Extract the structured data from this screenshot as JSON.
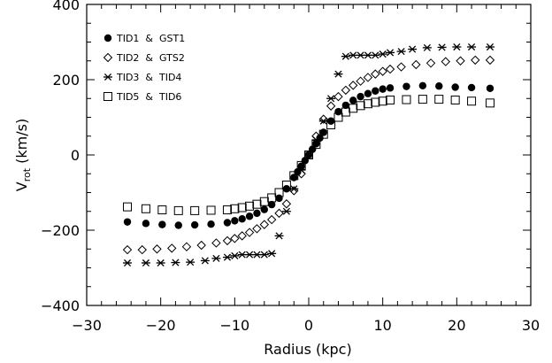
{
  "chart_data": {
    "type": "scatter",
    "xlabel": "Radius (kpc)",
    "ylabel": {
      "main": "V",
      "sub": "rot",
      "rest": " (km/s)"
    },
    "xlim": [
      -30,
      30
    ],
    "ylim": [
      -400,
      400
    ],
    "xticks": [
      -30,
      -20,
      -10,
      0,
      10,
      20,
      30
    ],
    "yticks": [
      -400,
      -200,
      0,
      200,
      400
    ],
    "xtick_labels": [
      "−30",
      "−20",
      "−10",
      "0",
      "10",
      "20",
      "30"
    ],
    "ytick_labels": [
      "−400",
      "−200",
      "0",
      "200",
      "400"
    ],
    "grid": false,
    "legend_position": "top-left",
    "series": [
      {
        "name": "TID1  &  GST1",
        "marker": "filled-circle",
        "x": [
          -24.5,
          -22,
          -19.8,
          -17.6,
          -15.4,
          -13.2,
          -11,
          -10,
          -9,
          -8,
          -7,
          -6,
          -5,
          -4,
          -3,
          -2,
          -1.5,
          -1,
          -0.5,
          0,
          0.5,
          1,
          1.5,
          2,
          3,
          4,
          5,
          6,
          7,
          8,
          9,
          10,
          11,
          13.2,
          15.4,
          17.6,
          19.8,
          22,
          24.5
        ],
        "y": [
          -178,
          -182,
          -185,
          -187,
          -186,
          -184,
          -180,
          -175,
          -170,
          -163,
          -155,
          -145,
          -132,
          -115,
          -90,
          -60,
          -45,
          -30,
          -15,
          0,
          15,
          30,
          45,
          60,
          90,
          115,
          132,
          145,
          155,
          163,
          170,
          175,
          178,
          182,
          184,
          183,
          180,
          179,
          177
        ]
      },
      {
        "name": "TID2  &  GTS2",
        "marker": "open-diamond",
        "x": [
          -24.5,
          -22.5,
          -20.5,
          -18.5,
          -16.5,
          -14.5,
          -12.5,
          -11,
          -10,
          -9,
          -8,
          -7,
          -6,
          -5,
          -4,
          -3,
          -2,
          -1,
          0,
          1,
          2,
          3,
          4,
          5,
          6,
          7,
          8,
          9,
          10,
          11,
          12.5,
          14.5,
          16.5,
          18.5,
          20.5,
          22.5,
          24.5
        ],
        "y": [
          -252,
          -252,
          -250,
          -248,
          -244,
          -240,
          -234,
          -228,
          -222,
          -215,
          -206,
          -196,
          -185,
          -172,
          -155,
          -130,
          -95,
          -50,
          0,
          50,
          95,
          130,
          155,
          172,
          185,
          196,
          206,
          215,
          222,
          228,
          234,
          240,
          244,
          248,
          250,
          252,
          252
        ]
      },
      {
        "name": "TID3  &  TID4",
        "marker": "asterisk",
        "x": [
          -24.5,
          -22,
          -20,
          -18,
          -16,
          -14,
          -12.5,
          -11,
          -10,
          -9,
          -8,
          -7,
          -6,
          -5,
          -4,
          -3,
          -2,
          -1,
          0,
          1,
          2,
          3,
          4,
          5,
          6,
          7,
          8,
          9,
          10,
          11,
          12.5,
          14,
          16,
          18,
          20,
          22,
          24.5
        ],
        "y": [
          -287,
          -287,
          -287,
          -286,
          -285,
          -281,
          -275,
          -272,
          -268,
          -265,
          -265,
          -265,
          -265,
          -262,
          -215,
          -150,
          -90,
          -40,
          0,
          40,
          90,
          150,
          215,
          262,
          265,
          265,
          265,
          265,
          268,
          272,
          275,
          281,
          285,
          286,
          287,
          287,
          287
        ]
      },
      {
        "name": "TID5  &  TID6",
        "marker": "open-square",
        "x": [
          -24.5,
          -22,
          -19.8,
          -17.6,
          -15.4,
          -13.2,
          -11,
          -10,
          -9,
          -8,
          -7,
          -6,
          -5,
          -4,
          -3,
          -2,
          -1,
          0,
          1,
          2,
          3,
          4,
          5,
          6,
          7,
          8,
          9,
          10,
          11,
          13.2,
          15.4,
          17.6,
          19.8,
          22,
          24.5
        ],
        "y": [
          -138,
          -143,
          -146,
          -148,
          -148,
          -147,
          -146,
          -143,
          -140,
          -136,
          -131,
          -124,
          -114,
          -100,
          -80,
          -55,
          -28,
          0,
          28,
          55,
          80,
          100,
          114,
          124,
          131,
          136,
          140,
          143,
          146,
          147,
          148,
          148,
          146,
          143,
          138
        ]
      }
    ]
  }
}
